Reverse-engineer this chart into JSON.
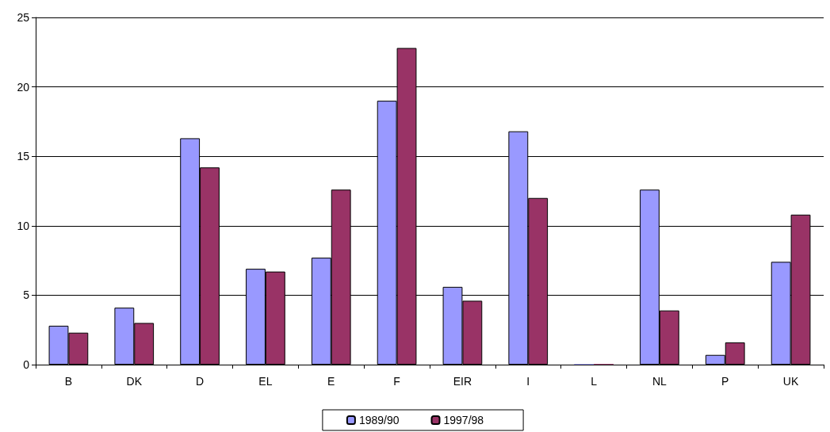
{
  "chart_data": {
    "type": "bar",
    "categories": [
      "B",
      "DK",
      "D",
      "EL",
      "E",
      "F",
      "EIR",
      "I",
      "L",
      "NL",
      "P",
      "UK"
    ],
    "series": [
      {
        "name": "1989/90",
        "color": "#9999ff",
        "values": [
          2.8,
          4.1,
          16.3,
          6.9,
          7.7,
          19.0,
          5.6,
          16.8,
          0.05,
          12.6,
          0.7,
          7.4
        ]
      },
      {
        "name": "1997/98",
        "color": "#993366",
        "values": [
          2.3,
          3.0,
          14.2,
          6.7,
          12.6,
          22.8,
          4.6,
          12.0,
          0.05,
          3.9,
          1.6,
          10.8
        ]
      }
    ],
    "ylim": [
      0,
      25
    ],
    "yticks": [
      0,
      5,
      10,
      15,
      20,
      25
    ],
    "grid": "y",
    "legend": "bottom"
  }
}
